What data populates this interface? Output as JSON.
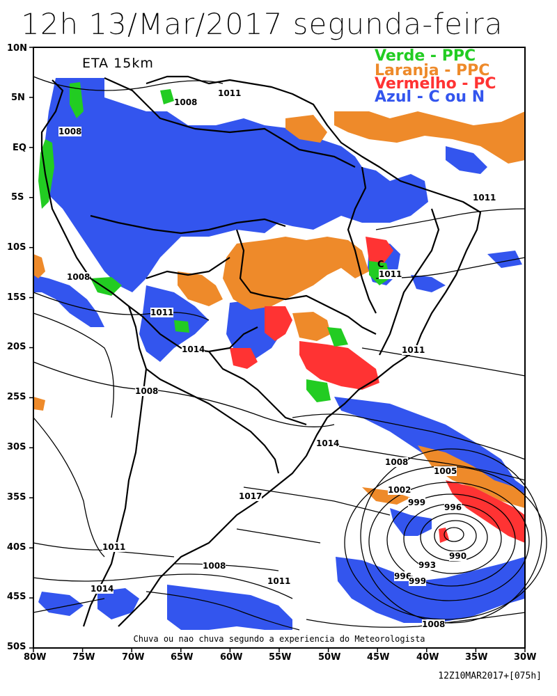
{
  "title": "12h 13/Mar/2017 segunda-feira",
  "model_label": "ETA 15km",
  "caption": "Chuva ou nao chuva segundo a experiencia do Meteorologista",
  "footer": "12Z10MAR2017+[075h]",
  "legend": [
    {
      "label": "Verde - PPC",
      "color": "#22cc22"
    },
    {
      "label": "Laranja - PPC",
      "color": "#ee8a2a"
    },
    {
      "label": "Vermelho - PC",
      "color": "#ff3333"
    },
    {
      "label": "Azul - C ou N",
      "color": "#3355ee"
    }
  ],
  "lat_ticks": [
    "10N",
    "5N",
    "EQ",
    "5S",
    "10S",
    "15S",
    "20S",
    "25S",
    "30S",
    "35S",
    "40S",
    "45S",
    "50S"
  ],
  "lon_ticks": [
    "80W",
    "75W",
    "70W",
    "65W",
    "60W",
    "55W",
    "50W",
    "45W",
    "40W",
    "35W",
    "30W"
  ],
  "isobar_labels": [
    "1008",
    "1011",
    "1008",
    "1008",
    "1011",
    "1011",
    "1014",
    "1008",
    "1011",
    "1011",
    "1014",
    "1008",
    "1005",
    "1002",
    "999",
    "996",
    "1017",
    "993",
    "996",
    "999",
    "990",
    "1011",
    "1008",
    "1011",
    "1014",
    "1008"
  ]
}
